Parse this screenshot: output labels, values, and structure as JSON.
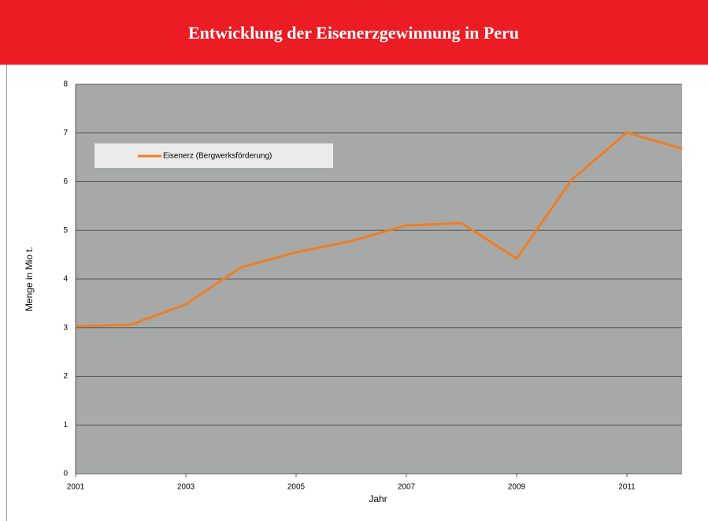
{
  "chart_data": {
    "type": "line",
    "title": "Entwicklung der Eisenerzgewinnung in Peru",
    "x_label": "Jahr",
    "y_label": "Menge in Mio t.",
    "x": [
      2001,
      2002,
      2003,
      2004,
      2005,
      2006,
      2007,
      2008,
      2009,
      2010,
      2011,
      2012
    ],
    "series": [
      {
        "name": "Eisenerz (Bergwerksförderung)",
        "color": "#f07d22",
        "values": [
          3.03,
          3.06,
          3.48,
          4.24,
          4.55,
          4.78,
          5.1,
          5.15,
          4.42,
          6.04,
          7.01,
          6.68
        ]
      }
    ],
    "xlim": [
      2001,
      2012
    ],
    "xticks": [
      2001,
      2003,
      2005,
      2007,
      2009,
      2011
    ],
    "ylim": [
      0,
      8
    ],
    "yticks": [
      0,
      1,
      2,
      3,
      4,
      5,
      6,
      7,
      8
    ],
    "grid": true,
    "legend": "top-left"
  }
}
